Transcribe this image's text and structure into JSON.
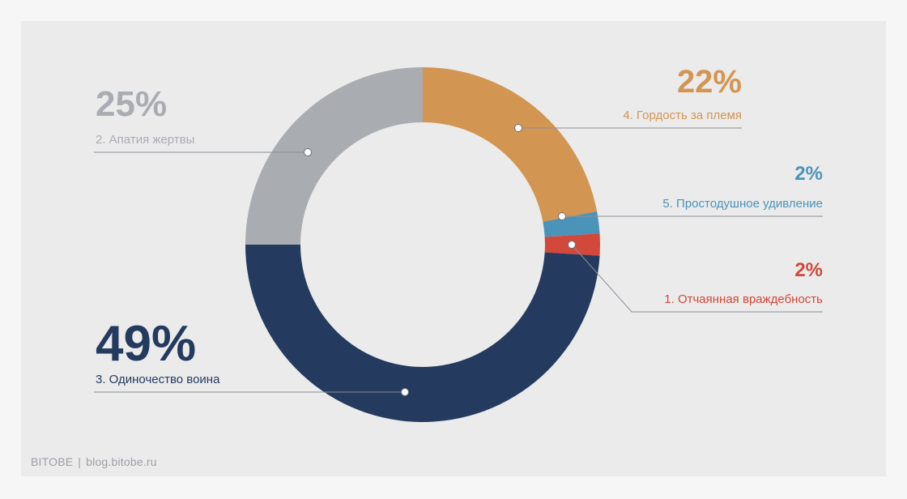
{
  "chart_data": {
    "type": "pie",
    "donut": true,
    "slices": [
      {
        "label": "4. Гордость за племя",
        "value": 22,
        "value_label": "22%",
        "color": "#d39552"
      },
      {
        "label": "5. Простодушное удивление",
        "value": 2,
        "value_label": "2%",
        "color": "#4c93ba"
      },
      {
        "label": "1. Отчаянная враждебность",
        "value": 2,
        "value_label": "2%",
        "color": "#d2483a"
      },
      {
        "label": "3. Одиночество воина",
        "value": 49,
        "value_label": "49%",
        "color": "#243a5e"
      },
      {
        "label": "2. Апатия жертвы",
        "value": 25,
        "value_label": "25%",
        "color": "#a9acb1"
      }
    ]
  },
  "footer": {
    "brand": "BITOBE",
    "separator": "|",
    "url": "blog.bitobe.ru"
  }
}
